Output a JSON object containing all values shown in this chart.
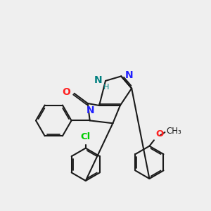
{
  "background_color": "#efefef",
  "bond_color": "#1a1a1a",
  "bond_width": 1.5,
  "N_color": "#2020ff",
  "O_color": "#ff2020",
  "Cl_color": "#00cc00",
  "NH_color": "#008080",
  "figsize": [
    3.0,
    3.0
  ],
  "dpi": 100,
  "xlim": [
    0,
    10
  ],
  "ylim": [
    0,
    10
  ]
}
